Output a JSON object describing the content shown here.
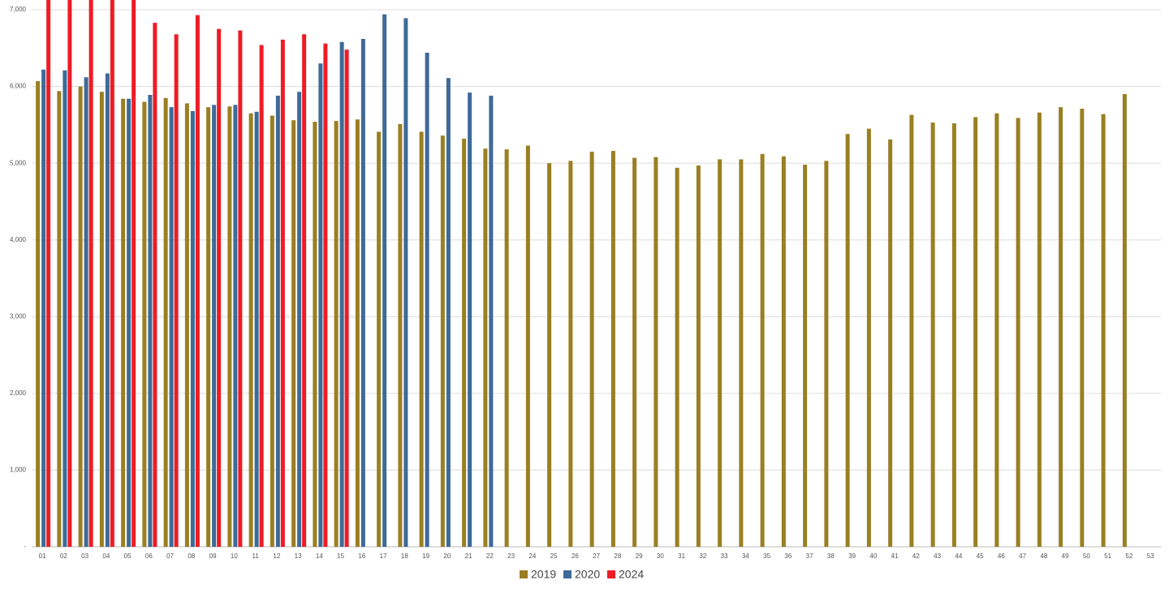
{
  "chart_data": {
    "type": "bar",
    "categories": [
      "01",
      "02",
      "03",
      "04",
      "05",
      "06",
      "07",
      "08",
      "09",
      "10",
      "11",
      "12",
      "13",
      "14",
      "15",
      "16",
      "17",
      "18",
      "19",
      "20",
      "21",
      "22",
      "23",
      "24",
      "25",
      "26",
      "27",
      "28",
      "29",
      "30",
      "31",
      "32",
      "33",
      "34",
      "35",
      "36",
      "37",
      "38",
      "39",
      "40",
      "41",
      "42",
      "43",
      "44",
      "45",
      "46",
      "47",
      "48",
      "49",
      "50",
      "51",
      "52",
      "53"
    ],
    "series": [
      {
        "name": "2019",
        "color": "#9a7f22",
        "values": [
          6070,
          5940,
          6000,
          5930,
          5840,
          5800,
          5850,
          5780,
          5730,
          5740,
          5650,
          5620,
          5560,
          5540,
          5550,
          5570,
          5410,
          5510,
          5410,
          5360,
          5320,
          5190,
          5180,
          5230,
          5000,
          5030,
          5150,
          5160,
          5070,
          5080,
          4940,
          4970,
          5050,
          5050,
          5120,
          5090,
          4980,
          5030,
          5380,
          5450,
          5310,
          5630,
          5530,
          5520,
          5600,
          5650,
          5590,
          5660,
          5730,
          5710,
          5640,
          5900,
          null
        ]
      },
      {
        "name": "2020",
        "color": "#3e6a98",
        "values": [
          6220,
          6210,
          6120,
          6170,
          5840,
          5890,
          5730,
          5680,
          5760,
          5760,
          5670,
          5880,
          5930,
          6300,
          6580,
          6620,
          6940,
          6890,
          6440,
          6110,
          5920,
          5880,
          null,
          null,
          null,
          null,
          null,
          null,
          null,
          null,
          null,
          null,
          null,
          null,
          null,
          null,
          null,
          null,
          null,
          null,
          null,
          null,
          null,
          null,
          null,
          null,
          null,
          null,
          null,
          null,
          null,
          null,
          null
        ]
      },
      {
        "name": "2024",
        "color": "#ee1c25",
        "values": [
          7300,
          7300,
          7300,
          7300,
          7300,
          6830,
          6680,
          6930,
          6750,
          6730,
          6540,
          6610,
          6680,
          6560,
          6480,
          null,
          null,
          null,
          null,
          null,
          null,
          null,
          null,
          null,
          null,
          null,
          null,
          null,
          null,
          null,
          null,
          null,
          null,
          null,
          null,
          null,
          null,
          null,
          null,
          null,
          null,
          null,
          null,
          null,
          null,
          null,
          null,
          null,
          null,
          null,
          null,
          null,
          null
        ]
      }
    ],
    "ylim": [
      0,
      7000
    ],
    "yticks": [
      {
        "value": 0,
        "label": "-"
      },
      {
        "value": 1000,
        "label": "1,000"
      },
      {
        "value": 2000,
        "label": "2,000"
      },
      {
        "value": 3000,
        "label": "3,000"
      },
      {
        "value": 4000,
        "label": "4,000"
      },
      {
        "value": 5000,
        "label": "5,000"
      },
      {
        "value": 6000,
        "label": "6,000"
      },
      {
        "value": 7000,
        "label": "7,000"
      }
    ],
    "grid": true,
    "legend": "bottom"
  }
}
